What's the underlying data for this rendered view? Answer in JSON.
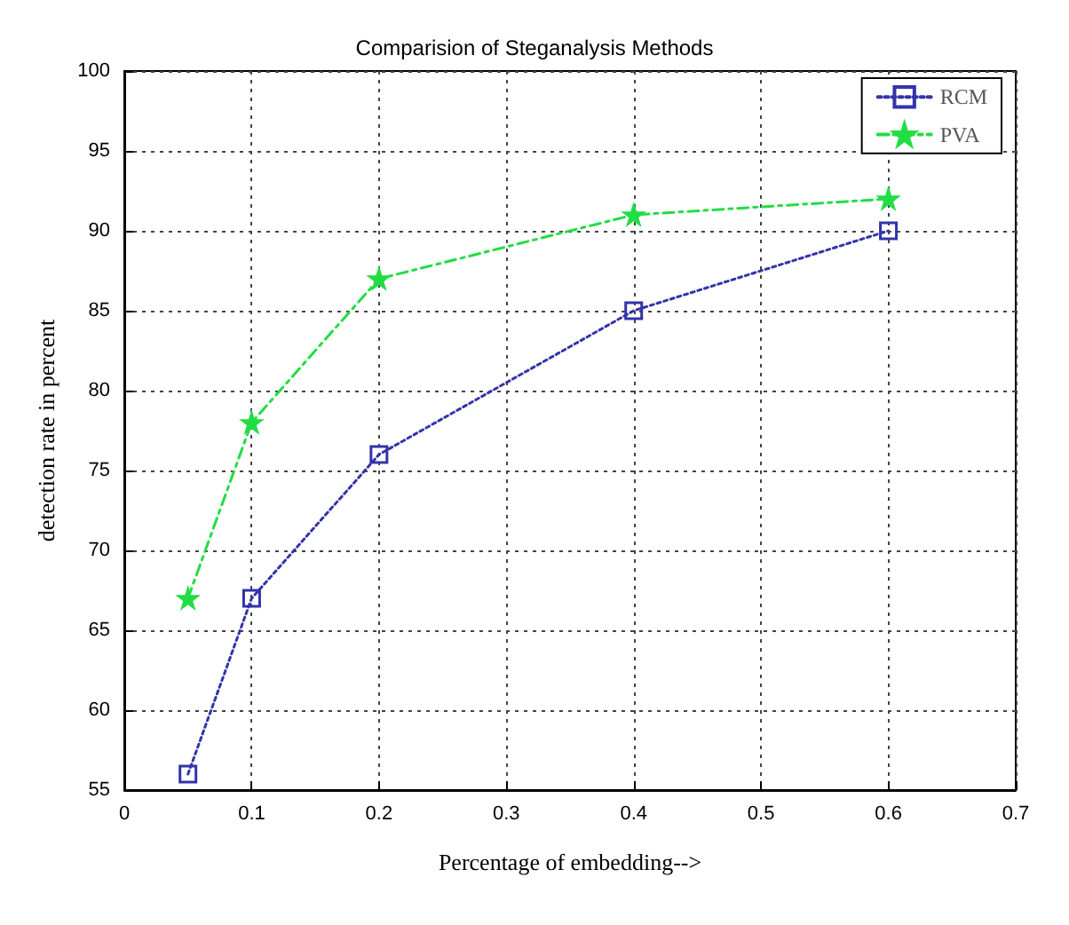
{
  "chart_data": {
    "type": "line",
    "title": "Comparision of Steganalysis Methods",
    "xlabel": "Percentage of embedding-->",
    "ylabel": "detection rate in percent",
    "x": [
      0.05,
      0.1,
      0.2,
      0.4,
      0.6
    ],
    "series": [
      {
        "name": "RCM",
        "color": "#3333aa",
        "values": [
          56,
          67,
          76,
          85,
          90
        ],
        "marker": "square",
        "line_style": "dotted"
      },
      {
        "name": "PVA",
        "color": "#22dd44",
        "values": [
          67,
          78,
          87,
          91,
          92
        ],
        "marker": "star",
        "line_style": "dashed"
      }
    ],
    "xlim": [
      0,
      0.7
    ],
    "xticks": [
      0,
      0.1,
      0.2,
      0.3,
      0.4,
      0.5,
      0.6,
      0.7
    ],
    "ylim": [
      55,
      100
    ],
    "yticks": [
      55,
      60,
      65,
      70,
      75,
      80,
      85,
      90,
      95,
      100
    ],
    "grid": true,
    "legend": "top right"
  }
}
